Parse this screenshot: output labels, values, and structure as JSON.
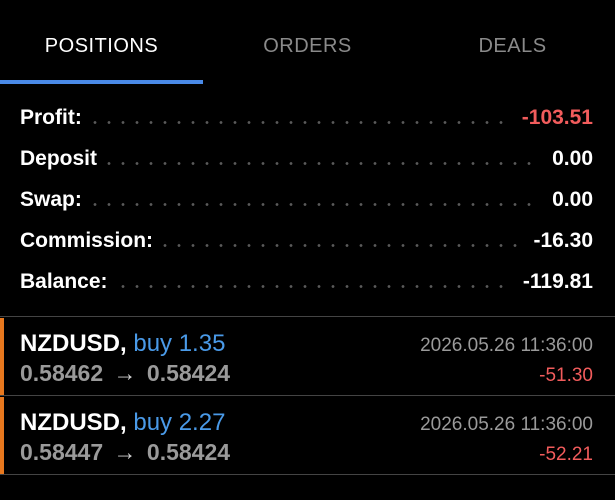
{
  "tabs": [
    {
      "label": "POSITIONS",
      "active": true
    },
    {
      "label": "ORDERS",
      "active": false
    },
    {
      "label": "DEALS",
      "active": false
    }
  ],
  "colors": {
    "accent": "#4a8ae8",
    "negative": "#f25c5c",
    "buy": "#4a9ae8",
    "position_marker": "#e8781e"
  },
  "summary": {
    "profit": {
      "label": "Profit:",
      "value": "-103.51"
    },
    "deposit": {
      "label": "Deposit",
      "value": "0.00"
    },
    "swap": {
      "label": "Swap:",
      "value": "0.00"
    },
    "commission": {
      "label": "Commission:",
      "value": "-16.30"
    },
    "balance": {
      "label": "Balance:",
      "value": "-119.81"
    }
  },
  "positions": [
    {
      "symbol": "NZDUSD,",
      "side": "buy 1.35",
      "open_price": "0.58462",
      "arrow": "→",
      "current_price": "0.58424",
      "time": "2026.05.26 11:36:00",
      "profit": "-51.30"
    },
    {
      "symbol": "NZDUSD,",
      "side": "buy 2.27",
      "open_price": "0.58447",
      "arrow": "→",
      "current_price": "0.58424",
      "time": "2026.05.26 11:36:00",
      "profit": "-52.21"
    }
  ]
}
